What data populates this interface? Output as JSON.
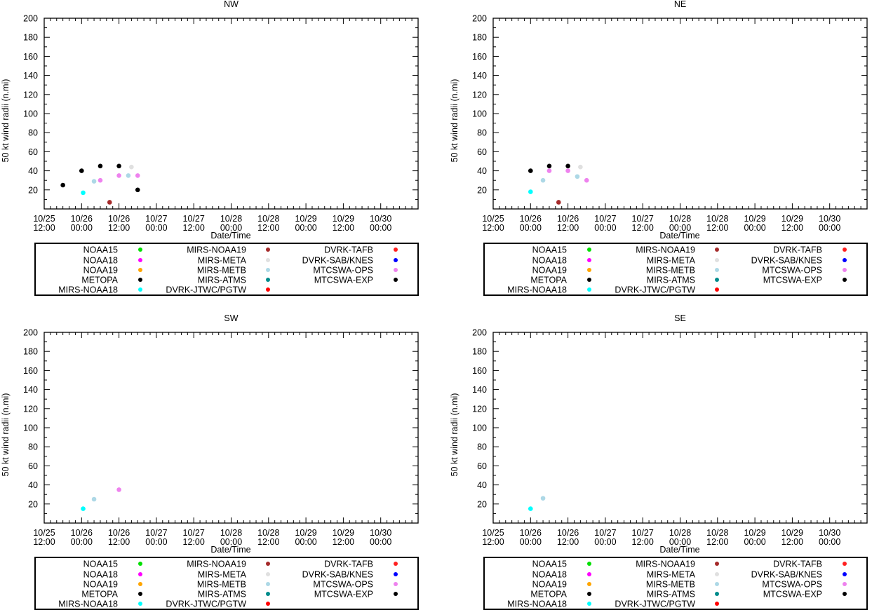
{
  "figure": {
    "ylabel": "50 kt wind radii (n.mi)",
    "xlabel": "Date/Time"
  },
  "legend": {
    "entries": [
      {
        "label": "NOAA15",
        "color": "#00e000"
      },
      {
        "label": "NOAA18",
        "color": "#ff00ff"
      },
      {
        "label": "NOAA19",
        "color": "#ffa500"
      },
      {
        "label": "METOPA",
        "color": "#000000"
      },
      {
        "label": "MIRS-NOAA18",
        "color": "#00ffff"
      },
      {
        "label": "MIRS-NOAA19",
        "color": "#a52a2a"
      },
      {
        "label": "MIRS-META",
        "color": "#e0e0e0"
      },
      {
        "label": "MIRS-METB",
        "color": "#add8e6"
      },
      {
        "label": "MIRS-ATMS",
        "color": "#008b8b"
      },
      {
        "label": "DVRK-JTWC/PGTW",
        "color": "#ff0000"
      },
      {
        "label": "DVRK-TAFB",
        "color": "#ff2020"
      },
      {
        "label": "DVRK-SAB/KNES",
        "color": "#0000ff"
      },
      {
        "label": "MTCSWA-OPS",
        "color": "#ee82ee"
      },
      {
        "label": "MTCSWA-EXP",
        "color": "#000000"
      }
    ]
  },
  "chart_data": [
    {
      "type": "scatter",
      "title": "NW",
      "xlabel": "Date/Time",
      "ylabel": "50 kt wind radii (n.mi)",
      "xlim": [
        0,
        120
      ],
      "ylim": [
        0,
        200
      ],
      "x_unit": "hours since 10/25 12:00",
      "x_ticks": [
        {
          "x": 0,
          "date": "10/25",
          "time": "12:00"
        },
        {
          "x": 12,
          "date": "10/26",
          "time": "00:00"
        },
        {
          "x": 24,
          "date": "10/26",
          "time": "12:00"
        },
        {
          "x": 36,
          "date": "10/27",
          "time": "00:00"
        },
        {
          "x": 48,
          "date": "10/27",
          "time": "12:00"
        },
        {
          "x": 60,
          "date": "10/28",
          "time": "00:00"
        },
        {
          "x": 72,
          "date": "10/28",
          "time": "12:00"
        },
        {
          "x": 84,
          "date": "10/29",
          "time": "00:00"
        },
        {
          "x": 96,
          "date": "10/29",
          "time": "12:00"
        },
        {
          "x": 108,
          "date": "10/30",
          "time": "00:00"
        },
        {
          "x": 120,
          "date": "",
          "time": ""
        }
      ],
      "y_ticks": [
        20,
        40,
        60,
        80,
        100,
        120,
        140,
        160,
        180,
        200
      ],
      "points": [
        {
          "x": 6,
          "y": 25,
          "series": "METOPA"
        },
        {
          "x": 12,
          "y": 40,
          "series": "METOPA"
        },
        {
          "x": 18,
          "y": 45,
          "series": "METOPA"
        },
        {
          "x": 24,
          "y": 45,
          "series": "METOPA"
        },
        {
          "x": 30,
          "y": 20,
          "series": "METOPA"
        },
        {
          "x": 12.5,
          "y": 17,
          "series": "MIRS-NOAA18"
        },
        {
          "x": 16,
          "y": 29,
          "series": "MIRS-METB"
        },
        {
          "x": 27,
          "y": 35,
          "series": "MIRS-METB"
        },
        {
          "x": 28,
          "y": 44,
          "series": "MIRS-META"
        },
        {
          "x": 18,
          "y": 30,
          "series": "MTCSWA-OPS"
        },
        {
          "x": 24,
          "y": 35,
          "series": "MTCSWA-OPS"
        },
        {
          "x": 30,
          "y": 35,
          "series": "MTCSWA-OPS"
        },
        {
          "x": 21,
          "y": 7,
          "series": "MIRS-NOAA19"
        }
      ]
    },
    {
      "type": "scatter",
      "title": "NE",
      "xlabel": "Date/Time",
      "ylabel": "50 kt wind radii (n.mi)",
      "xlim": [
        0,
        120
      ],
      "ylim": [
        0,
        200
      ],
      "x_unit": "hours since 10/25 12:00",
      "x_ticks": [
        {
          "x": 0,
          "date": "10/25",
          "time": "12:00"
        },
        {
          "x": 12,
          "date": "10/26",
          "time": "00:00"
        },
        {
          "x": 24,
          "date": "10/26",
          "time": "12:00"
        },
        {
          "x": 36,
          "date": "10/27",
          "time": "00:00"
        },
        {
          "x": 48,
          "date": "10/27",
          "time": "12:00"
        },
        {
          "x": 60,
          "date": "10/28",
          "time": "00:00"
        },
        {
          "x": 72,
          "date": "10/28",
          "time": "12:00"
        },
        {
          "x": 84,
          "date": "10/29",
          "time": "00:00"
        },
        {
          "x": 96,
          "date": "10/29",
          "time": "12:00"
        },
        {
          "x": 108,
          "date": "10/30",
          "time": "00:00"
        },
        {
          "x": 120,
          "date": "",
          "time": ""
        }
      ],
      "y_ticks": [
        20,
        40,
        60,
        80,
        100,
        120,
        140,
        160,
        180,
        200
      ],
      "points": [
        {
          "x": 12,
          "y": 40,
          "series": "METOPA"
        },
        {
          "x": 18,
          "y": 45,
          "series": "METOPA"
        },
        {
          "x": 24,
          "y": 45,
          "series": "METOPA"
        },
        {
          "x": 12,
          "y": 18,
          "series": "MIRS-NOAA18"
        },
        {
          "x": 16,
          "y": 30,
          "series": "MIRS-METB"
        },
        {
          "x": 27,
          "y": 34,
          "series": "MIRS-METB"
        },
        {
          "x": 28,
          "y": 44,
          "series": "MIRS-META"
        },
        {
          "x": 18,
          "y": 40,
          "series": "MTCSWA-OPS"
        },
        {
          "x": 24,
          "y": 40,
          "series": "MTCSWA-OPS"
        },
        {
          "x": 30,
          "y": 30,
          "series": "MTCSWA-OPS"
        },
        {
          "x": 21,
          "y": 7,
          "series": "MIRS-NOAA19"
        }
      ]
    },
    {
      "type": "scatter",
      "title": "SW",
      "xlabel": "Date/Time",
      "ylabel": "50 kt wind radii (n.mi)",
      "xlim": [
        0,
        120
      ],
      "ylim": [
        0,
        200
      ],
      "x_unit": "hours since 10/25 12:00",
      "x_ticks": [
        {
          "x": 0,
          "date": "10/25",
          "time": "12:00"
        },
        {
          "x": 12,
          "date": "10/26",
          "time": "00:00"
        },
        {
          "x": 24,
          "date": "10/26",
          "time": "12:00"
        },
        {
          "x": 36,
          "date": "10/27",
          "time": "00:00"
        },
        {
          "x": 48,
          "date": "10/27",
          "time": "12:00"
        },
        {
          "x": 60,
          "date": "10/28",
          "time": "00:00"
        },
        {
          "x": 72,
          "date": "10/28",
          "time": "12:00"
        },
        {
          "x": 84,
          "date": "10/29",
          "time": "00:00"
        },
        {
          "x": 96,
          "date": "10/29",
          "time": "12:00"
        },
        {
          "x": 108,
          "date": "10/30",
          "time": "00:00"
        },
        {
          "x": 120,
          "date": "",
          "time": ""
        }
      ],
      "y_ticks": [
        20,
        40,
        60,
        80,
        100,
        120,
        140,
        160,
        180,
        200
      ],
      "points": [
        {
          "x": 12.5,
          "y": 15,
          "series": "MIRS-NOAA18"
        },
        {
          "x": 16,
          "y": 25,
          "series": "MIRS-METB"
        },
        {
          "x": 24,
          "y": 35,
          "series": "MTCSWA-OPS"
        }
      ]
    },
    {
      "type": "scatter",
      "title": "SE",
      "xlabel": "Date/Time",
      "ylabel": "50 kt wind radii (n.mi)",
      "xlim": [
        0,
        120
      ],
      "ylim": [
        0,
        200
      ],
      "x_unit": "hours since 10/25 12:00",
      "x_ticks": [
        {
          "x": 0,
          "date": "10/25",
          "time": "12:00"
        },
        {
          "x": 12,
          "date": "10/26",
          "time": "00:00"
        },
        {
          "x": 24,
          "date": "10/26",
          "time": "12:00"
        },
        {
          "x": 36,
          "date": "10/27",
          "time": "00:00"
        },
        {
          "x": 48,
          "date": "10/27",
          "time": "12:00"
        },
        {
          "x": 60,
          "date": "10/28",
          "time": "00:00"
        },
        {
          "x": 72,
          "date": "10/28",
          "time": "12:00"
        },
        {
          "x": 84,
          "date": "10/29",
          "time": "00:00"
        },
        {
          "x": 96,
          "date": "10/29",
          "time": "12:00"
        },
        {
          "x": 108,
          "date": "10/30",
          "time": "00:00"
        },
        {
          "x": 120,
          "date": "",
          "time": ""
        }
      ],
      "y_ticks": [
        20,
        40,
        60,
        80,
        100,
        120,
        140,
        160,
        180,
        200
      ],
      "points": [
        {
          "x": 12,
          "y": 15,
          "series": "MIRS-NOAA18"
        },
        {
          "x": 16,
          "y": 26,
          "series": "MIRS-METB"
        }
      ]
    }
  ]
}
